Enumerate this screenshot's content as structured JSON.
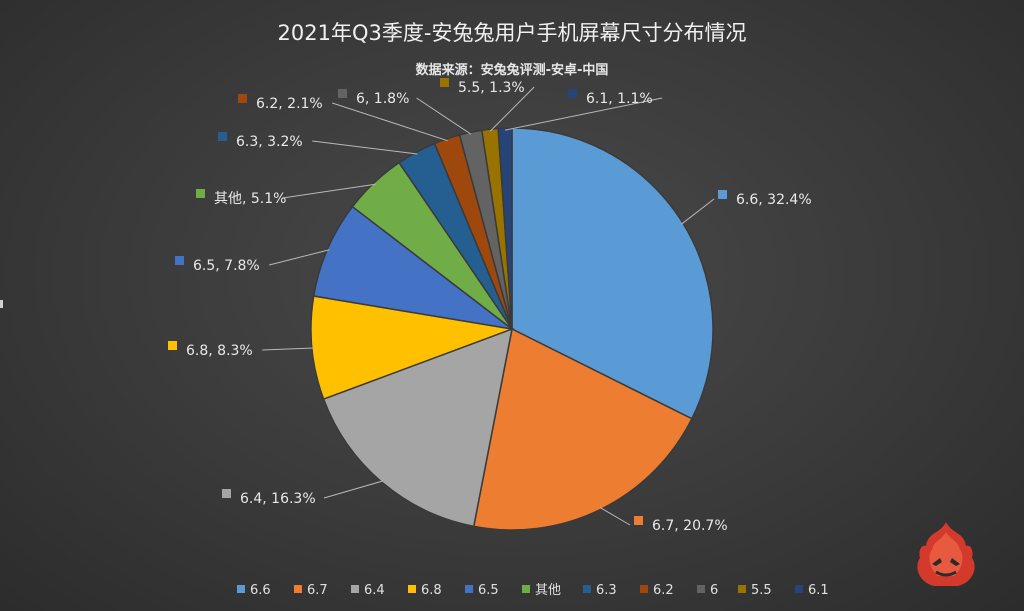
{
  "chart_data": {
    "type": "pie",
    "title": "2021年Q3季度-安兔兔用户手机屏幕尺寸分布情况",
    "subtitle": "数据来源：安兔兔评测-安卓-中国",
    "slices": [
      {
        "name": "6.6",
        "label": "6.6, 32.4%",
        "value": 32.4,
        "color": "#5b9bd5"
      },
      {
        "name": "6.7",
        "label": "6.7, 20.7%",
        "value": 20.7,
        "color": "#ed7d31"
      },
      {
        "name": "6.4",
        "label": "6.4, 16.3%",
        "value": 16.3,
        "color": "#a5a5a5"
      },
      {
        "name": "6.8",
        "label": "6.8, 8.3%",
        "value": 8.3,
        "color": "#ffc000"
      },
      {
        "name": "6.5",
        "label": "6.5, 7.8%",
        "value": 7.8,
        "color": "#4472c4"
      },
      {
        "name": "其他",
        "label": "其他, 5.1%",
        "value": 5.1,
        "color": "#70ad47"
      },
      {
        "name": "6.3",
        "label": "6.3, 3.2%",
        "value": 3.2,
        "color": "#255e91"
      },
      {
        "name": "6.2",
        "label": "6.2, 2.1%",
        "value": 2.1,
        "color": "#9e480e"
      },
      {
        "name": "6",
        "label": "6, 1.8%",
        "value": 1.8,
        "color": "#636363"
      },
      {
        "name": "5.5",
        "label": "5.5, 1.3%",
        "value": 1.3,
        "color": "#997300"
      },
      {
        "name": "6.1",
        "label": "6.1, 1.1%",
        "value": 1.1,
        "color": "#264478"
      }
    ],
    "legend_position": "bottom"
  },
  "icons": {
    "logo": "antutu-fire-logo"
  }
}
